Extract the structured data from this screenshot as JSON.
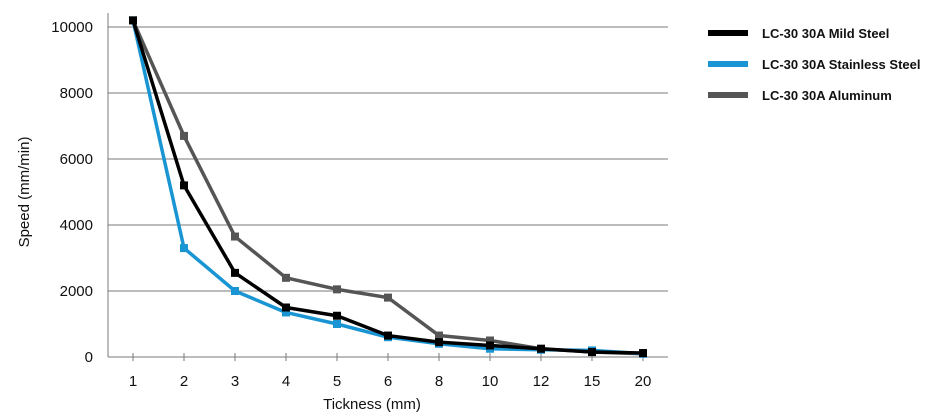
{
  "chart_data": {
    "type": "line",
    "xlabel": "Tickness (mm)",
    "ylabel": "Speed (mm/min)",
    "categories": [
      "1",
      "2",
      "3",
      "4",
      "5",
      "6",
      "8",
      "10",
      "12",
      "15",
      "20"
    ],
    "ylim": [
      0,
      10000
    ],
    "yticks": [
      0,
      2000,
      4000,
      6000,
      8000,
      10000
    ],
    "grid": "horizontal",
    "legend_position": "right",
    "series": [
      {
        "name": "LC-30 30A Mild Steel",
        "color": "#000000",
        "values": [
          10200,
          5200,
          2550,
          1500,
          1250,
          650,
          450,
          350,
          250,
          150,
          120
        ]
      },
      {
        "name": "LC-30 30A Stainless Steel",
        "color": "#1a95d3",
        "values": [
          10200,
          3300,
          2000,
          1350,
          1000,
          600,
          400,
          250,
          220,
          200,
          100
        ]
      },
      {
        "name": "LC-30 30A Aluminum",
        "color": "#555555",
        "values": [
          10200,
          6700,
          3650,
          2400,
          2050,
          1800,
          650,
          500,
          250,
          150,
          100
        ]
      }
    ]
  }
}
